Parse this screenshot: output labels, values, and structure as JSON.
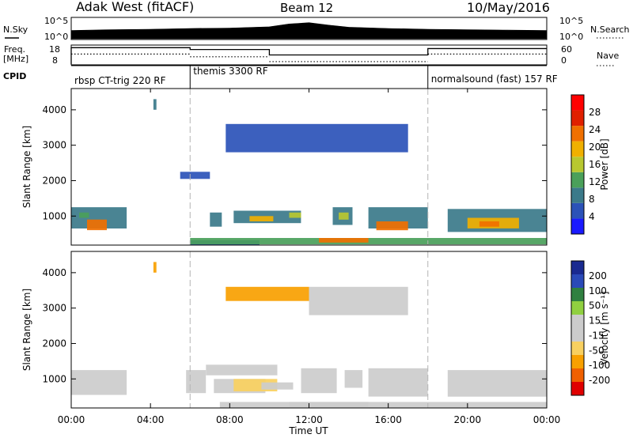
{
  "header": {
    "station": "Adak West (fitACF)",
    "beam": "Beam 12",
    "date": "10/May/2016"
  },
  "nsky_panel": {
    "left_label": "N.Sky",
    "right_label": "N.Search",
    "left_ticks": [
      "10^5",
      "10^0"
    ],
    "right_ticks": [
      "10^5",
      "10^0"
    ]
  },
  "freq_panel": {
    "left_label_1": "Freq.",
    "left_label_2": "[MHz]",
    "right_label": "Nave",
    "left_ticks": [
      "18",
      "8"
    ],
    "right_ticks": [
      "60",
      "0"
    ]
  },
  "cpid": {
    "label": "CPID",
    "segments": [
      {
        "text": "rbsp CT-trig 220 RF",
        "start_hour": 0
      },
      {
        "text": "themis 3300 RF",
        "start_hour": 6
      },
      {
        "text": "normalsound (fast) 157 RF",
        "start_hour": 18
      }
    ]
  },
  "x_axis": {
    "label": "Time UT",
    "ticks": [
      "00:00",
      "04:00",
      "08:00",
      "12:00",
      "16:00",
      "20:00",
      "00:00"
    ]
  },
  "power_panel": {
    "ylabel": "Slant Range [km]",
    "yticks": [
      "1000",
      "2000",
      "3000",
      "4000"
    ],
    "colorbar_label": "Power [dB]",
    "colorbar_ticks": [
      "4",
      "8",
      "12",
      "16",
      "20",
      "24",
      "28"
    ]
  },
  "velocity_panel": {
    "ylabel": "Slant Range [km]",
    "yticks": [
      "1000",
      "2000",
      "3000",
      "4000"
    ],
    "colorbar_label": "Velocity [m s⁻¹]",
    "colorbar_ticks": [
      "200",
      "100",
      "50",
      "15",
      "-15",
      "-50",
      "-100",
      "-200"
    ]
  },
  "chart_data": [
    {
      "type": "line",
      "name": "N.Sky / N.Search",
      "x_unit": "hours UT",
      "xlim": [
        0,
        24
      ],
      "ylim_log10": [
        0,
        5
      ],
      "x": [
        0,
        2,
        4,
        6,
        8,
        10,
        11,
        12,
        13,
        14,
        16,
        18,
        20,
        22,
        24
      ],
      "nsky_log10": [
        2.0,
        2.2,
        2.3,
        2.5,
        2.6,
        2.9,
        3.6,
        3.9,
        3.3,
        2.8,
        2.5,
        2.3,
        2.2,
        2.1,
        2.0
      ]
    },
    {
      "type": "line",
      "name": "Frequency / Nave",
      "x_unit": "hours UT",
      "xlim": [
        0,
        24
      ],
      "freq_ylim": [
        8,
        18
      ],
      "nave_ylim": [
        0,
        60
      ],
      "freq_steps": [
        {
          "from": 0,
          "to": 6,
          "value": 17
        },
        {
          "from": 6,
          "to": 10,
          "value": 16
        },
        {
          "from": 10,
          "to": 18,
          "value": 13
        },
        {
          "from": 18,
          "to": 24,
          "value": 16.5
        }
      ],
      "nave_steps": [
        {
          "from": 0,
          "to": 6,
          "value": 33
        },
        {
          "from": 6,
          "to": 10,
          "value": 24
        },
        {
          "from": 10,
          "to": 18,
          "value": 8
        },
        {
          "from": 18,
          "to": 24,
          "value": 33
        }
      ]
    },
    {
      "type": "heatmap",
      "name": "Power",
      "x_unit": "hours UT",
      "y_unit": "km",
      "xlim": [
        0,
        24
      ],
      "ylim": [
        180,
        4600
      ],
      "clim": [
        0,
        32
      ],
      "patches": [
        {
          "x0": 0.0,
          "x1": 2.8,
          "y0": 650,
          "y1": 1250,
          "v": 8
        },
        {
          "x0": 0.8,
          "x1": 1.8,
          "y0": 600,
          "y1": 900,
          "v": 22
        },
        {
          "x0": 0.4,
          "x1": 0.9,
          "y0": 950,
          "y1": 1100,
          "v": 14
        },
        {
          "x0": 6.0,
          "x1": 9.5,
          "y0": 180,
          "y1": 320,
          "v": 6
        },
        {
          "x0": 7.0,
          "x1": 7.6,
          "y0": 700,
          "y1": 1100,
          "v": 8
        },
        {
          "x0": 8.2,
          "x1": 11.6,
          "y0": 800,
          "y1": 1150,
          "v": 10
        },
        {
          "x0": 9.0,
          "x1": 10.2,
          "y0": 850,
          "y1": 1000,
          "v": 18
        },
        {
          "x0": 11.0,
          "x1": 11.6,
          "y0": 950,
          "y1": 1100,
          "v": 16
        },
        {
          "x0": 13.2,
          "x1": 14.2,
          "y0": 750,
          "y1": 1250,
          "v": 9
        },
        {
          "x0": 13.5,
          "x1": 14.0,
          "y0": 900,
          "y1": 1100,
          "v": 17
        },
        {
          "x0": 15.0,
          "x1": 18.0,
          "y0": 650,
          "y1": 1250,
          "v": 9
        },
        {
          "x0": 15.4,
          "x1": 17.0,
          "y0": 600,
          "y1": 850,
          "v": 23
        },
        {
          "x0": 19.0,
          "x1": 24.0,
          "y0": 550,
          "y1": 1200,
          "v": 10
        },
        {
          "x0": 20.0,
          "x1": 22.6,
          "y0": 650,
          "y1": 950,
          "v": 18
        },
        {
          "x0": 20.6,
          "x1": 21.6,
          "y0": 700,
          "y1": 850,
          "v": 24
        },
        {
          "x0": 6.0,
          "x1": 24.0,
          "y0": 200,
          "y1": 380,
          "v": 14
        },
        {
          "x0": 12.5,
          "x1": 15.0,
          "y0": 250,
          "y1": 380,
          "v": 22
        },
        {
          "x0": 5.5,
          "x1": 7.0,
          "y0": 2050,
          "y1": 2250,
          "v": 6
        },
        {
          "x0": 4.15,
          "x1": 4.3,
          "y0": 4000,
          "y1": 4300,
          "v": 8
        },
        {
          "x0": 7.8,
          "x1": 17.0,
          "y0": 2800,
          "y1": 3600,
          "v": 5
        }
      ]
    },
    {
      "type": "heatmap",
      "name": "Velocity",
      "x_unit": "hours UT",
      "y_unit": "km",
      "xlim": [
        0,
        24
      ],
      "ylim": [
        180,
        4600
      ],
      "clim": [
        -250,
        250
      ],
      "patches": [
        {
          "x0": 0.0,
          "x1": 2.8,
          "y0": 550,
          "y1": 1250,
          "v": 0
        },
        {
          "x0": 5.8,
          "x1": 6.8,
          "y0": 600,
          "y1": 1250,
          "v": 0
        },
        {
          "x0": 6.8,
          "x1": 10.4,
          "y0": 1100,
          "y1": 1400,
          "v": 0
        },
        {
          "x0": 7.2,
          "x1": 9.8,
          "y0": 600,
          "y1": 1000,
          "v": 0
        },
        {
          "x0": 8.2,
          "x1": 10.4,
          "y0": 650,
          "y1": 1000,
          "v": -60
        },
        {
          "x0": 9.6,
          "x1": 11.2,
          "y0": 700,
          "y1": 900,
          "v": -45
        },
        {
          "x0": 11.6,
          "x1": 13.4,
          "y0": 600,
          "y1": 1300,
          "v": 0
        },
        {
          "x0": 13.8,
          "x1": 14.7,
          "y0": 750,
          "y1": 1250,
          "v": 0
        },
        {
          "x0": 15.0,
          "x1": 18.0,
          "y0": 500,
          "y1": 1300,
          "v": 0
        },
        {
          "x0": 19.0,
          "x1": 24.0,
          "y0": 500,
          "y1": 1250,
          "v": 0
        },
        {
          "x0": 7.5,
          "x1": 24.0,
          "y0": 180,
          "y1": 350,
          "v": -20
        },
        {
          "x0": 11.0,
          "x1": 15.0,
          "y0": 200,
          "y1": 350,
          "v": 40
        },
        {
          "x0": 4.15,
          "x1": 4.3,
          "y0": 4000,
          "y1": 4300,
          "v": -150
        },
        {
          "x0": 7.8,
          "x1": 12.0,
          "y0": 3200,
          "y1": 3600,
          "v": -120
        },
        {
          "x0": 12.0,
          "x1": 17.0,
          "y0": 2800,
          "y1": 3600,
          "v": 0
        }
      ]
    }
  ],
  "colors": {
    "power_scale": [
      "#1a1aff",
      "#2b52b8",
      "#3b7a8a",
      "#4aa05a",
      "#b8c830",
      "#f0b000",
      "#f07000",
      "#e02000",
      "#ff0000"
    ],
    "velocity_scale": [
      "#e00000",
      "#f06000",
      "#f8a000",
      "#f8d060",
      "#cccccc",
      "#cccccc",
      "#90d040",
      "#308040",
      "#2a4ab8",
      "#1a2a90"
    ],
    "frame": "#000000",
    "dashed": "#b4b4b4"
  }
}
